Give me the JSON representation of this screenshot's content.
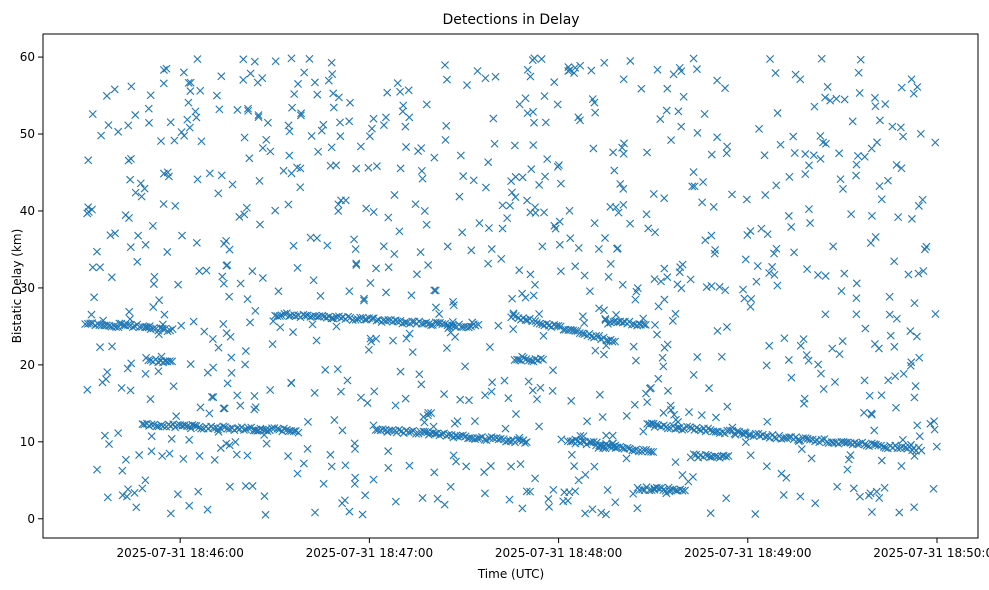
{
  "chart_data": {
    "type": "scatter",
    "title": "Detections in Delay",
    "xlabel": "Time (UTC)",
    "ylabel": "Bistatic Delay (km)",
    "x_ticks": [
      {
        "label": "2025-07-31 18:46:00",
        "t": 30
      },
      {
        "label": "2025-07-31 18:47:00",
        "t": 90
      },
      {
        "label": "2025-07-31 18:48:00",
        "t": 150
      },
      {
        "label": "2025-07-31 18:49:00",
        "t": 210
      },
      {
        "label": "2025-07-31 18:50:00",
        "t": 270
      }
    ],
    "y_ticks": [
      0,
      10,
      20,
      30,
      40,
      50,
      60
    ],
    "xlim_seconds_after_18_45_30": [
      -13.5,
      283
    ],
    "ylim": [
      -2.5,
      63
    ],
    "marker": "x",
    "color": "#1f77b4",
    "grid": false,
    "tracks": [
      {
        "t_start": 0,
        "t_end": 20,
        "delay_start": 25.4,
        "delay_end": 24.9
      },
      {
        "t_start": 20,
        "t_end": 28,
        "delay_start": 24.7,
        "delay_end": 24.4
      },
      {
        "t_start": 20,
        "t_end": 28,
        "delay_start": 20.6,
        "delay_end": 20.4
      },
      {
        "t_start": 18,
        "t_end": 68,
        "delay_start": 12.2,
        "delay_end": 11.4
      },
      {
        "t_start": 60,
        "t_end": 125,
        "delay_start": 26.6,
        "delay_end": 25.0
      },
      {
        "t_start": 92,
        "t_end": 140,
        "delay_start": 11.6,
        "delay_end": 10.0
      },
      {
        "t_start": 135,
        "t_end": 168,
        "delay_start": 26.4,
        "delay_end": 23.0
      },
      {
        "t_start": 165,
        "t_end": 178,
        "delay_start": 25.6,
        "delay_end": 25.2
      },
      {
        "t_start": 153,
        "t_end": 168,
        "delay_start": 10.0,
        "delay_end": 9.6
      },
      {
        "t_start": 178,
        "t_end": 265,
        "delay_start": 12.2,
        "delay_end": 9.0
      },
      {
        "t_start": 162,
        "t_end": 180,
        "delay_start": 9.4,
        "delay_end": 8.8
      },
      {
        "t_start": 192,
        "t_end": 204,
        "delay_start": 8.2,
        "delay_end": 8.0
      },
      {
        "t_start": 175,
        "t_end": 190,
        "delay_start": 3.9,
        "delay_end": 3.8
      },
      {
        "t_start": 136,
        "t_end": 145,
        "delay_start": 20.8,
        "delay_end": 20.6
      }
    ],
    "clutter": {
      "t_range": [
        0,
        270
      ],
      "delay_range": [
        0.5,
        60
      ],
      "approx_count": 900
    }
  }
}
